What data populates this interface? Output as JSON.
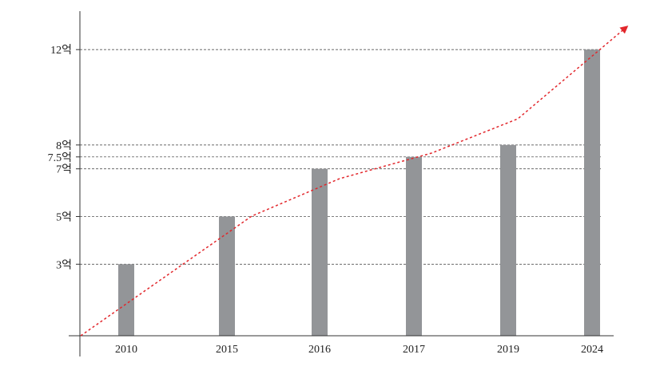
{
  "chart_data": {
    "type": "bar",
    "title": "",
    "xlabel": "",
    "ylabel": "",
    "categories": [
      "2010",
      "2015",
      "2016",
      "2017",
      "2019",
      "2024"
    ],
    "values": [
      3,
      5,
      7,
      7.5,
      8,
      12
    ],
    "y_ticks": [
      {
        "value": 3,
        "label": "3억"
      },
      {
        "value": 5,
        "label": "5억"
      },
      {
        "value": 7,
        "label": "7억"
      },
      {
        "value": 7.5,
        "label": "7.5억"
      },
      {
        "value": 8,
        "label": "8억"
      },
      {
        "value": 12,
        "label": "12억"
      }
    ],
    "ylim": [
      0,
      13.5
    ],
    "grid": "dashed horizontal at tick values",
    "trend_line": "dashed red arrow rising from origin to upper right",
    "colors": {
      "bar": "#939598",
      "grid": "#555555",
      "axis": "#333333",
      "trend": "#e2262b"
    }
  }
}
